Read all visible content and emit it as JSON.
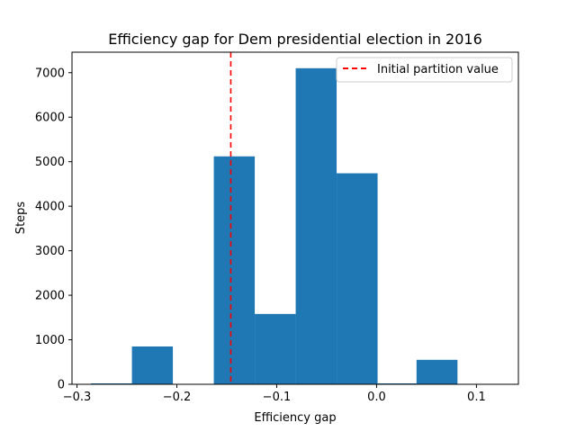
{
  "chart_data": {
    "type": "bar",
    "title": "Efficiency gap for Dem presidential election in 2016",
    "xlabel": "Efficiency gap",
    "ylabel": "Steps",
    "xlim": [
      -0.305,
      0.142
    ],
    "ylim": [
      0,
      7460
    ],
    "bins": [
      {
        "x0": -0.286,
        "x1": -0.245,
        "value": 20
      },
      {
        "x0": -0.245,
        "x1": -0.204,
        "value": 850
      },
      {
        "x0": -0.204,
        "x1": -0.163,
        "value": 0
      },
      {
        "x0": -0.163,
        "x1": -0.122,
        "value": 5120
      },
      {
        "x0": -0.122,
        "x1": -0.081,
        "value": 1580
      },
      {
        "x0": -0.081,
        "x1": -0.04,
        "value": 7100
      },
      {
        "x0": -0.04,
        "x1": 0.001,
        "value": 4740
      },
      {
        "x0": 0.001,
        "x1": 0.04,
        "value": 20
      },
      {
        "x0": 0.04,
        "x1": 0.081,
        "value": 550
      },
      {
        "x0": 0.081,
        "x1": 0.122,
        "value": 0
      }
    ],
    "xticks": [
      {
        "value": -0.3,
        "label": "−0.3"
      },
      {
        "value": -0.2,
        "label": "−0.2"
      },
      {
        "value": -0.1,
        "label": "−0.1"
      },
      {
        "value": 0.0,
        "label": "0.0"
      },
      {
        "value": 0.1,
        "label": "0.1"
      }
    ],
    "yticks": [
      {
        "value": 0,
        "label": "0"
      },
      {
        "value": 1000,
        "label": "1000"
      },
      {
        "value": 2000,
        "label": "2000"
      },
      {
        "value": 3000,
        "label": "3000"
      },
      {
        "value": 4000,
        "label": "4000"
      },
      {
        "value": 5000,
        "label": "5000"
      },
      {
        "value": 6000,
        "label": "6000"
      },
      {
        "value": 7000,
        "label": "7000"
      }
    ],
    "reference_line": {
      "value": -0.146,
      "label": "Initial partition value",
      "color": "#ff0000",
      "style": "dashed"
    },
    "bar_color": "#1f77b4",
    "grid": false,
    "legend": {
      "placement": "top-right",
      "entries": [
        "Initial partition value"
      ]
    }
  }
}
